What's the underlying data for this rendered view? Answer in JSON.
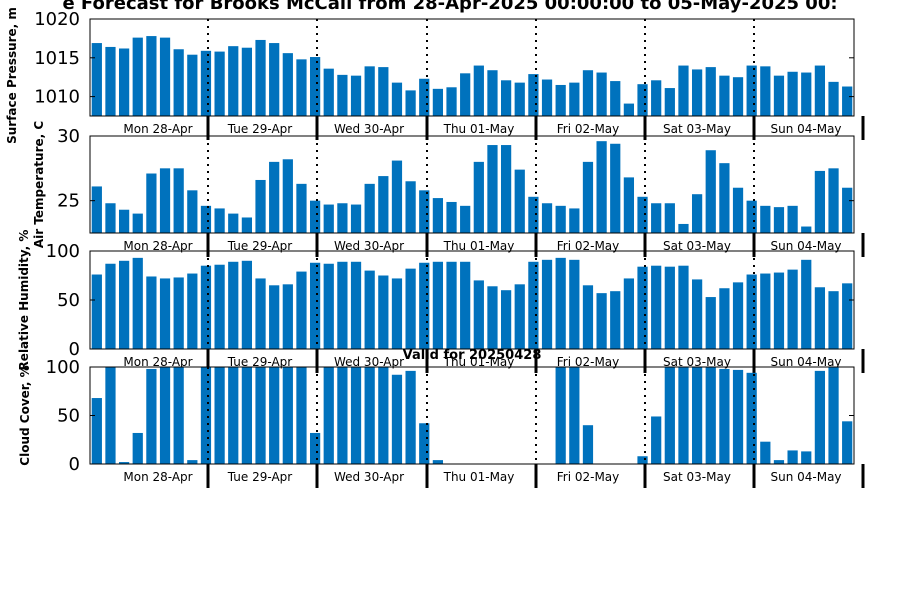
{
  "chart_data": {
    "title": "e Forecast for Brooks McCall from 28-Apr-2025 00:00:00 to 05-May-2025 00:",
    "bar_color": "#0072BD",
    "day_labels": [
      "Mon 28-Apr",
      "Tue 29-Apr",
      "Wed 30-Apr",
      "Thu 01-May",
      "Fri 02-May",
      "Sat 03-May",
      "Sun 04-May"
    ],
    "panels": [
      {
        "type": "bar",
        "ylabel": "Surface Pressure, m",
        "ylim": [
          1007.5,
          1020
        ],
        "yticks": [
          "1010",
          "1015",
          "1020"
        ],
        "subtitle": "",
        "values": [
          1016.9,
          1016.4,
          1016.2,
          1017.6,
          1017.8,
          1017.6,
          1016.1,
          1015.4,
          1015.9,
          1015.8,
          1016.5,
          1016.3,
          1017.3,
          1016.9,
          1015.6,
          1014.8,
          1015.1,
          1013.6,
          1012.8,
          1012.7,
          1013.9,
          1013.8,
          1011.8,
          1010.8,
          1012.3,
          1011.0,
          1011.2,
          1013.0,
          1014.0,
          1013.4,
          1012.1,
          1011.8,
          1012.9,
          1012.2,
          1011.5,
          1011.8,
          1013.4,
          1013.1,
          1012.0,
          1009.1,
          1011.6,
          1012.1,
          1011.1,
          1014.0,
          1013.5,
          1013.8,
          1012.7,
          1012.5,
          1014.0,
          1013.9,
          1012.7,
          1013.2,
          1013.1,
          1014.0,
          1011.9,
          1011.3
        ]
      },
      {
        "type": "bar",
        "ylabel": "Air Temperature, C",
        "ylim": [
          22.5,
          30
        ],
        "yticks": [
          "25",
          "30"
        ],
        "subtitle": "",
        "values": [
          26.1,
          24.8,
          24.3,
          24.0,
          27.1,
          27.5,
          27.5,
          25.8,
          24.6,
          24.4,
          24.0,
          23.7,
          26.6,
          28.0,
          28.2,
          26.3,
          25.0,
          24.7,
          24.8,
          24.7,
          26.3,
          26.9,
          28.1,
          26.5,
          25.8,
          25.2,
          24.9,
          24.6,
          28.0,
          29.3,
          29.3,
          27.4,
          25.3,
          24.8,
          24.6,
          24.4,
          28.0,
          29.6,
          29.4,
          26.8,
          25.3,
          24.8,
          24.8,
          23.2,
          25.5,
          28.9,
          27.9,
          26.0,
          25.0,
          24.6,
          24.5,
          24.6,
          23.0,
          27.3,
          27.5,
          26.0
        ]
      },
      {
        "type": "bar",
        "ylabel": "Relative Humidity, %",
        "ylim": [
          0,
          100
        ],
        "yticks": [
          "0",
          "50",
          "100"
        ],
        "subtitle": "",
        "values": [
          76,
          87,
          90,
          93,
          74,
          72,
          73,
          77,
          85,
          86,
          89,
          90,
          72,
          65,
          66,
          79,
          88,
          87,
          89,
          89,
          80,
          75,
          72,
          82,
          88,
          89,
          89,
          89,
          70,
          64,
          60,
          66,
          89,
          91,
          93,
          91,
          65,
          57,
          59,
          72,
          84,
          85,
          84,
          85,
          71,
          53,
          62,
          68,
          76,
          77,
          78,
          81,
          91,
          63,
          59,
          67
        ]
      },
      {
        "type": "bar",
        "ylabel": "Cloud Cover, %",
        "ylim": [
          0,
          100
        ],
        "yticks": [
          "0",
          "50",
          "100"
        ],
        "subtitle": "Valid for 20250428",
        "values": [
          68,
          100,
          2,
          32,
          98,
          100,
          100,
          4,
          100,
          100,
          100,
          100,
          100,
          100,
          100,
          100,
          32,
          100,
          100,
          100,
          100,
          100,
          92,
          96,
          42,
          4,
          0,
          0,
          0,
          0,
          0,
          0,
          0,
          0,
          100,
          100,
          40,
          0,
          0,
          0,
          8,
          49,
          100,
          100,
          100,
          100,
          98,
          97,
          94,
          23,
          4,
          14,
          13,
          96,
          100,
          44
        ]
      }
    ]
  }
}
